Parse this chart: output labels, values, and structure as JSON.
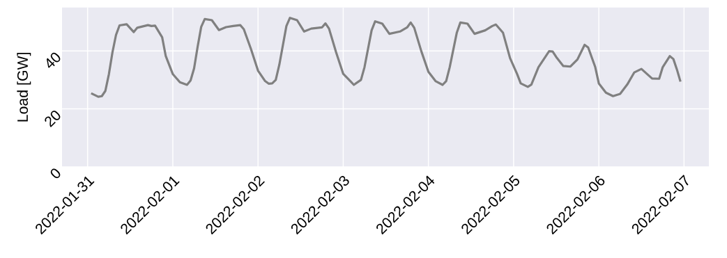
{
  "chart_data": {
    "type": "line",
    "ylabel": "Load [GW]",
    "color": "#808080",
    "grid": true,
    "xlim": [
      "2022-01-30T16:48",
      "2022-02-07T07:00"
    ],
    "xticks": [
      "2022-01-31",
      "2022-02-01",
      "2022-02-02",
      "2022-02-03",
      "2022-02-04",
      "2022-02-05",
      "2022-02-06",
      "2022-02-07"
    ],
    "ylim": [
      0,
      55
    ],
    "yticks": [
      0,
      20,
      40
    ],
    "x": [
      "2022-01-31T01:00",
      "2022-01-31T03:00",
      "2022-01-31T04:00",
      "2022-01-31T05:00",
      "2022-01-31T06:00",
      "2022-01-31T07:00",
      "2022-01-31T08:00",
      "2022-01-31T09:00",
      "2022-01-31T11:00",
      "2022-01-31T13:00",
      "2022-01-31T14:00",
      "2022-01-31T17:00",
      "2022-01-31T18:00",
      "2022-01-31T19:00",
      "2022-01-31T21:00",
      "2022-01-31T22:00",
      "2022-02-01T00:00",
      "2022-02-01T02:00",
      "2022-02-01T04:00",
      "2022-02-01T05:00",
      "2022-02-01T06:00",
      "2022-02-01T07:00",
      "2022-02-01T08:00",
      "2022-02-01T09:00",
      "2022-02-01T11:00",
      "2022-02-01T13:00",
      "2022-02-01T15:00",
      "2022-02-01T17:00",
      "2022-02-01T19:00",
      "2022-02-01T20:00",
      "2022-02-01T22:00",
      "2022-02-02T00:00",
      "2022-02-02T02:00",
      "2022-02-02T03:00",
      "2022-02-02T04:00",
      "2022-02-02T05:00",
      "2022-02-02T06:00",
      "2022-02-02T08:00",
      "2022-02-02T09:00",
      "2022-02-02T11:00",
      "2022-02-02T13:00",
      "2022-02-02T15:00",
      "2022-02-02T18:00",
      "2022-02-02T19:00",
      "2022-02-02T20:00",
      "2022-02-02T22:00",
      "2022-02-03T00:00",
      "2022-02-03T02:00",
      "2022-02-03T03:00",
      "2022-02-03T05:00",
      "2022-02-03T06:00",
      "2022-02-03T08:00",
      "2022-02-03T09:00",
      "2022-02-03T11:00",
      "2022-02-03T13:00",
      "2022-02-03T16:00",
      "2022-02-03T18:00",
      "2022-02-03T19:00",
      "2022-02-03T20:00",
      "2022-02-03T22:00",
      "2022-02-04T00:00",
      "2022-02-04T02:00",
      "2022-02-04T04:00",
      "2022-02-04T05:00",
      "2022-02-04T06:00",
      "2022-02-04T08:00",
      "2022-02-04T09:00",
      "2022-02-04T11:00",
      "2022-02-04T13:00",
      "2022-02-04T16:00",
      "2022-02-04T18:00",
      "2022-02-04T19:00",
      "2022-02-04T21:00",
      "2022-02-04T23:00",
      "2022-02-05T01:00",
      "2022-02-05T02:00",
      "2022-02-05T04:00",
      "2022-02-05T05:00",
      "2022-02-05T07:00",
      "2022-02-05T10:00",
      "2022-02-05T11:00",
      "2022-02-05T12:00",
      "2022-02-05T14:00",
      "2022-02-05T16:00",
      "2022-02-05T18:00",
      "2022-02-05T20:00",
      "2022-02-05T21:00",
      "2022-02-05T23:00",
      "2022-02-06T00:00",
      "2022-02-06T02:00",
      "2022-02-06T04:00",
      "2022-02-06T06:00",
      "2022-02-06T08:00",
      "2022-02-06T10:00",
      "2022-02-06T11:00",
      "2022-02-06T12:00",
      "2022-02-06T15:00",
      "2022-02-06T17:00",
      "2022-02-06T18:00",
      "2022-02-06T20:00",
      "2022-02-06T21:00",
      "2022-02-06T22:00",
      "2022-02-06T23:00"
    ],
    "values": [
      25.4,
      24.2,
      24.4,
      26.2,
      32.0,
      39.5,
      45.5,
      48.8,
      49.2,
      46.5,
      48.0,
      48.9,
      48.6,
      48.7,
      44.7,
      38.3,
      32.0,
      29.2,
      28.3,
      29.8,
      34.0,
      41.5,
      48.3,
      51.0,
      50.6,
      47.2,
      48.2,
      48.6,
      48.9,
      47.5,
      40.7,
      33.2,
      29.6,
      28.7,
      28.8,
      30.0,
      35.2,
      48.6,
      51.4,
      50.6,
      46.7,
      47.7,
      48.1,
      49.5,
      47.7,
      39.5,
      32.1,
      29.6,
      28.3,
      30.0,
      34.4,
      47.1,
      50.2,
      49.4,
      45.9,
      46.7,
      48.1,
      49.8,
      48.0,
      39.9,
      32.8,
      29.6,
      28.3,
      29.6,
      34.4,
      46.3,
      49.8,
      49.4,
      45.9,
      47.1,
      48.6,
      49.1,
      46.3,
      37.5,
      32.0,
      28.8,
      27.6,
      28.4,
      34.4,
      39.9,
      39.8,
      37.9,
      34.8,
      34.6,
      37.1,
      42.1,
      41.2,
      34.4,
      28.8,
      25.6,
      24.4,
      25.2,
      28.4,
      32.6,
      33.2,
      33.8,
      30.5,
      30.4,
      34.4,
      38.2,
      37.2,
      33.6,
      29.4
    ]
  }
}
